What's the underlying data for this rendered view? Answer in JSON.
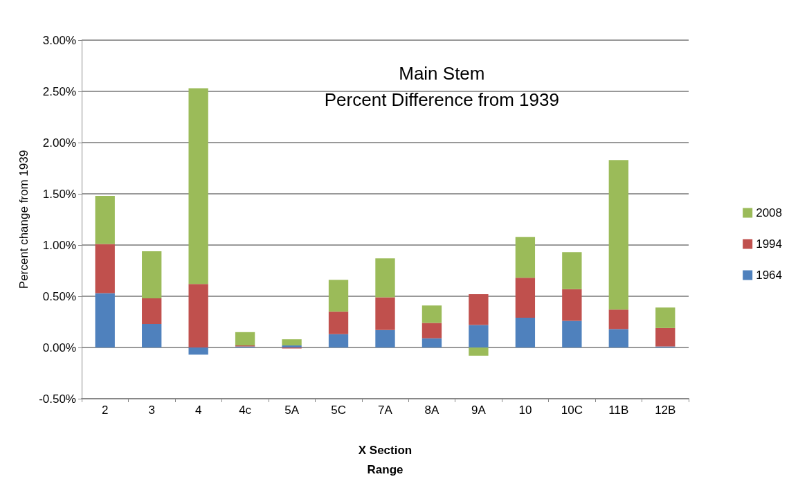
{
  "chart_data": {
    "type": "bar",
    "stacked": true,
    "title": "Main Stem",
    "subtitle": "Percent Difference from 1939",
    "xlabel": "X Section\nRange",
    "ylabel": "Percent change from 1939",
    "categories": [
      "2",
      "3",
      "4",
      "4c",
      "5A",
      "5C",
      "7A",
      "8A",
      "9A",
      "10",
      "10C",
      "11B",
      "12B"
    ],
    "series": [
      {
        "name": "1964",
        "color": "#4f81bd",
        "values": [
          0.53,
          0.23,
          -0.07,
          0.01,
          0.02,
          0.13,
          0.17,
          0.09,
          0.22,
          0.29,
          0.26,
          0.18,
          0.01
        ]
      },
      {
        "name": "1994",
        "color": "#c0504d",
        "values": [
          0.48,
          0.25,
          0.62,
          0.01,
          -0.01,
          0.22,
          0.32,
          0.15,
          0.3,
          0.39,
          0.31,
          0.19,
          0.18
        ]
      },
      {
        "name": "2008",
        "color": "#9bbb59",
        "values": [
          0.47,
          0.46,
          1.91,
          0.13,
          0.06,
          0.31,
          0.38,
          0.17,
          -0.08,
          0.4,
          0.36,
          1.46,
          0.2
        ]
      }
    ],
    "ylim": [
      -0.5,
      3
    ],
    "yticks": [
      {
        "value": -0.5,
        "label": "-0.50%"
      },
      {
        "value": 0,
        "label": "0.00%"
      },
      {
        "value": 0.5,
        "label": "0.50%"
      },
      {
        "value": 1,
        "label": "1.00%"
      },
      {
        "value": 1.5,
        "label": "1.50%"
      },
      {
        "value": 2,
        "label": "2.00%"
      },
      {
        "value": 2.5,
        "label": "2.50%"
      },
      {
        "value": 3,
        "label": "3.00%"
      }
    ],
    "grid": "y",
    "legend": "right"
  }
}
